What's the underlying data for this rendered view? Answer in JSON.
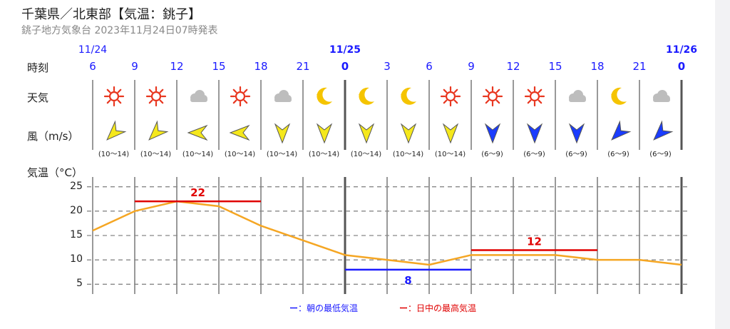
{
  "header": {
    "title": "千葉県／北東部【気温：銚子】",
    "subtitle": "銚子地方気象台 2023年11月24日07時発表"
  },
  "row_labels": {
    "time": "時刻",
    "weather": "天気",
    "wind": "風（m/s）",
    "temp": "気温（°C）"
  },
  "dates": [
    {
      "label": "11/24",
      "hour_index": 0
    },
    {
      "label": "11/25",
      "hour_index": 6
    },
    {
      "label": "11/26",
      "hour_index": 14
    }
  ],
  "hours": [
    "6",
    "9",
    "12",
    "15",
    "18",
    "21",
    "0",
    "3",
    "6",
    "9",
    "12",
    "15",
    "18",
    "21",
    "0"
  ],
  "weather": [
    "sunny-icon",
    "sunny-icon",
    "cloudy-icon",
    "sunny-icon",
    "cloudy-icon",
    "clear-night-icon",
    "clear-night-icon",
    "clear-night-icon",
    "sunny-icon",
    "sunny-icon",
    "sunny-icon",
    "cloudy-icon",
    "clear-night-icon",
    "cloudy-icon"
  ],
  "wind": [
    {
      "dir": "NE",
      "speed": "(10〜14)",
      "color": "#f5e81c"
    },
    {
      "dir": "NE",
      "speed": "(10〜14)",
      "color": "#f5e81c"
    },
    {
      "dir": "E",
      "speed": "(10〜14)",
      "color": "#f5e81c"
    },
    {
      "dir": "E",
      "speed": "(10〜14)",
      "color": "#f5e81c"
    },
    {
      "dir": "N",
      "speed": "(10〜14)",
      "color": "#f5e81c"
    },
    {
      "dir": "N",
      "speed": "(10〜14)",
      "color": "#f5e81c"
    },
    {
      "dir": "N",
      "speed": "(10〜14)",
      "color": "#f5e81c"
    },
    {
      "dir": "N",
      "speed": "(10〜14)",
      "color": "#f5e81c"
    },
    {
      "dir": "N",
      "speed": "(10〜14)",
      "color": "#f5e81c"
    },
    {
      "dir": "N",
      "speed": "(6〜9)",
      "color": "#1a3cff"
    },
    {
      "dir": "N",
      "speed": "(6〜9)",
      "color": "#1a3cff"
    },
    {
      "dir": "N",
      "speed": "(6〜9)",
      "color": "#1a3cff"
    },
    {
      "dir": "NE",
      "speed": "(6〜9)",
      "color": "#1a3cff"
    },
    {
      "dir": "NE",
      "speed": "(6〜9)",
      "color": "#1a3cff"
    }
  ],
  "chart_data": {
    "type": "line",
    "x": [
      "11/24 6",
      "9",
      "12",
      "15",
      "18",
      "21",
      "11/25 0",
      "3",
      "6",
      "9",
      "12",
      "15",
      "18",
      "21",
      "11/26 0"
    ],
    "series": [
      {
        "values": [
          16,
          20,
          22,
          21,
          17,
          14,
          11,
          10,
          9,
          11,
          11,
          11,
          10,
          10,
          9
        ]
      }
    ],
    "ylim": [
      3,
      27
    ],
    "yticks": [
      5,
      10,
      15,
      20,
      25
    ],
    "grid": true,
    "annotations": [
      {
        "kind": "daytime-max",
        "value": 22,
        "label": "22",
        "from_index": 1,
        "to_index": 4
      },
      {
        "kind": "morning-min",
        "value": 8,
        "label": "8",
        "from_index": 6,
        "to_index": 9
      },
      {
        "kind": "daytime-max",
        "value": 12,
        "label": "12",
        "from_index": 9,
        "to_index": 12
      }
    ],
    "colors": {
      "temp": "#f5a623",
      "max": "#e00000",
      "min": "#1a1aff"
    }
  },
  "legend": {
    "min_dash": "ー",
    "min_text": "：朝の最低気温",
    "max_dash": "ー",
    "max_text": "：日中の最高気温"
  }
}
